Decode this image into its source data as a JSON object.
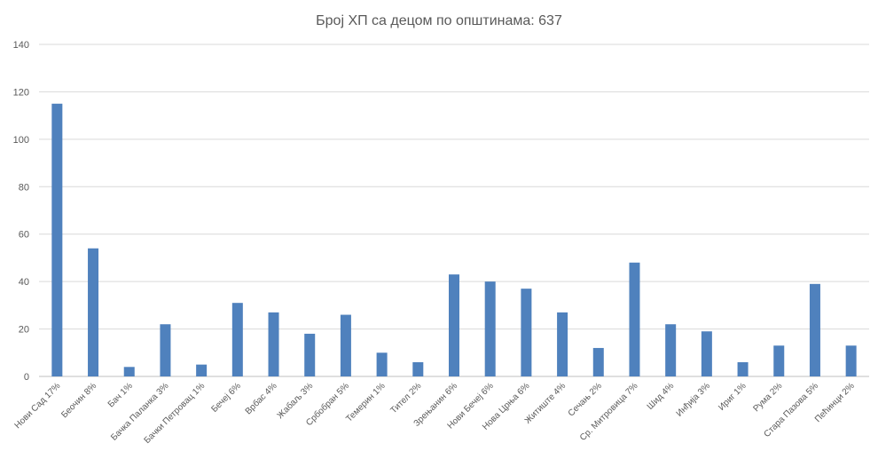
{
  "chart_data": {
    "type": "bar",
    "title": "Број ХП са децом по општинама: 637",
    "xlabel": "",
    "ylabel": "",
    "ylim": [
      0,
      140
    ],
    "yticks": [
      0,
      20,
      40,
      60,
      80,
      100,
      120,
      140
    ],
    "grid": true,
    "legend": "none",
    "bar_color": "#4f81bd",
    "categories": [
      "Нови Сад 17%",
      "Беочин 8%",
      "Бач 1%",
      "Бачка Паланка 3%",
      "Бачки Петровац 1%",
      "Бечеј 6%",
      "Врбас 4%",
      "Жабаљ 3%",
      "Србобран 5%",
      "Темерин 1%",
      "Тител 2%",
      "Зрењанин 6%",
      "Нови Бечеј 6%",
      "Нова Црња 6%",
      "Житиште 4%",
      "Сечањ 2%",
      "Ср. Митровица 7%",
      "Шид 4%",
      "Инђија 3%",
      "Ириг 1%",
      "Рума 2%",
      "Стара Пазова 5%",
      "Пећинци 2%"
    ],
    "values": [
      115,
      54,
      4,
      22,
      5,
      31,
      27,
      18,
      26,
      10,
      6,
      43,
      40,
      37,
      27,
      12,
      48,
      22,
      19,
      6,
      13,
      39,
      13
    ]
  }
}
